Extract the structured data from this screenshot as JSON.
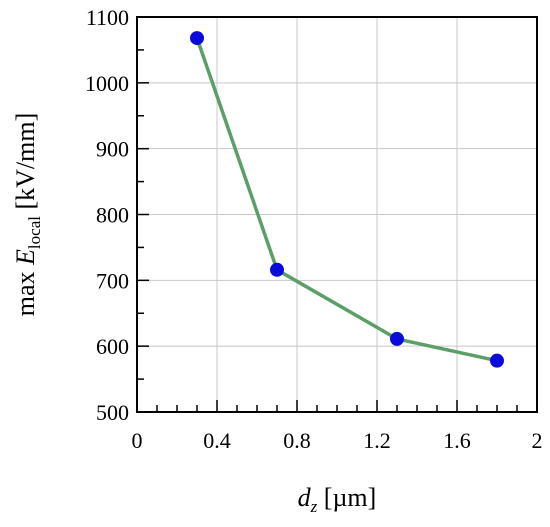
{
  "chart_data": {
    "type": "line",
    "x": [
      0.3,
      0.7,
      1.3,
      1.8
    ],
    "y": [
      1068,
      716,
      611,
      578
    ],
    "xlim": [
      0,
      2
    ],
    "ylim": [
      500,
      1100
    ],
    "x_ticks": [
      "0",
      "0.4",
      "0.8",
      "1.2",
      "1.6",
      "2"
    ],
    "x_tick_values": [
      0,
      0.4,
      0.8,
      1.2,
      1.6,
      2
    ],
    "y_ticks": [
      "500",
      "600",
      "700",
      "800",
      "900",
      "1000",
      "1100"
    ],
    "y_tick_values": [
      500,
      600,
      700,
      800,
      900,
      1000,
      1100
    ],
    "x_minor_step": 0.1,
    "y_minor_step": 50,
    "xlabel": {
      "main": "d",
      "sub": "z",
      "unit": " [µm]"
    },
    "ylabel": {
      "prefix": "max ",
      "main": "E",
      "sub": "local",
      "unit": " [kV/mm]"
    },
    "grid": true,
    "line_color": "#5b9e68",
    "marker_color": "#0a0adc"
  }
}
